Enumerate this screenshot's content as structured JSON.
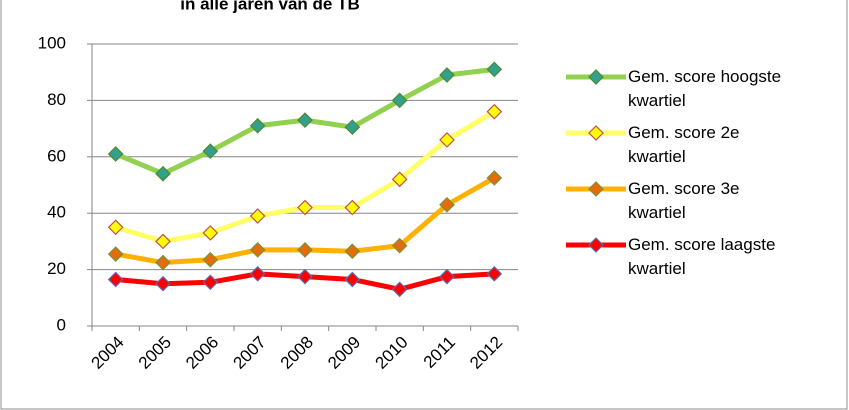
{
  "chart_data": {
    "type": "line",
    "title": "in alle jaren van de TB",
    "categories": [
      "2004",
      "2005",
      "2006",
      "2007",
      "2008",
      "2009",
      "2010",
      "2011",
      "2012"
    ],
    "series": [
      {
        "name": "Gem. score hoogste kwartiel",
        "color": "#92d050",
        "marker_fill": "#31a08c",
        "marker_edge": "#4f8a2e",
        "values": [
          61,
          54,
          62,
          71,
          73,
          70.5,
          80,
          89,
          91
        ]
      },
      {
        "name": "Gem. score 2e kwartiel",
        "color": "#ffff66",
        "marker_fill": "#ffff00",
        "marker_edge": "#c0504d",
        "values": [
          35,
          30,
          33,
          39,
          42,
          42,
          52,
          66,
          76
        ]
      },
      {
        "name": "Gem. score 3e kwartiel",
        "color": "#ffb000",
        "marker_fill": "#e46c0a",
        "marker_edge": "#77933c",
        "values": [
          25.5,
          22.5,
          23.5,
          27,
          27,
          26.5,
          28.5,
          43,
          52.5
        ]
      },
      {
        "name": "Gem. score laagste kwartiel",
        "color": "#ff0000",
        "marker_fill": "#ff0000",
        "marker_edge": "#4f6fb8",
        "values": [
          16.5,
          15,
          15.5,
          18.5,
          17.5,
          16.5,
          13,
          17.5,
          18.5
        ]
      }
    ],
    "ylim": [
      0,
      100
    ],
    "yticks": [
      0,
      20,
      40,
      60,
      80,
      100
    ],
    "grid": true,
    "legend": "right"
  }
}
